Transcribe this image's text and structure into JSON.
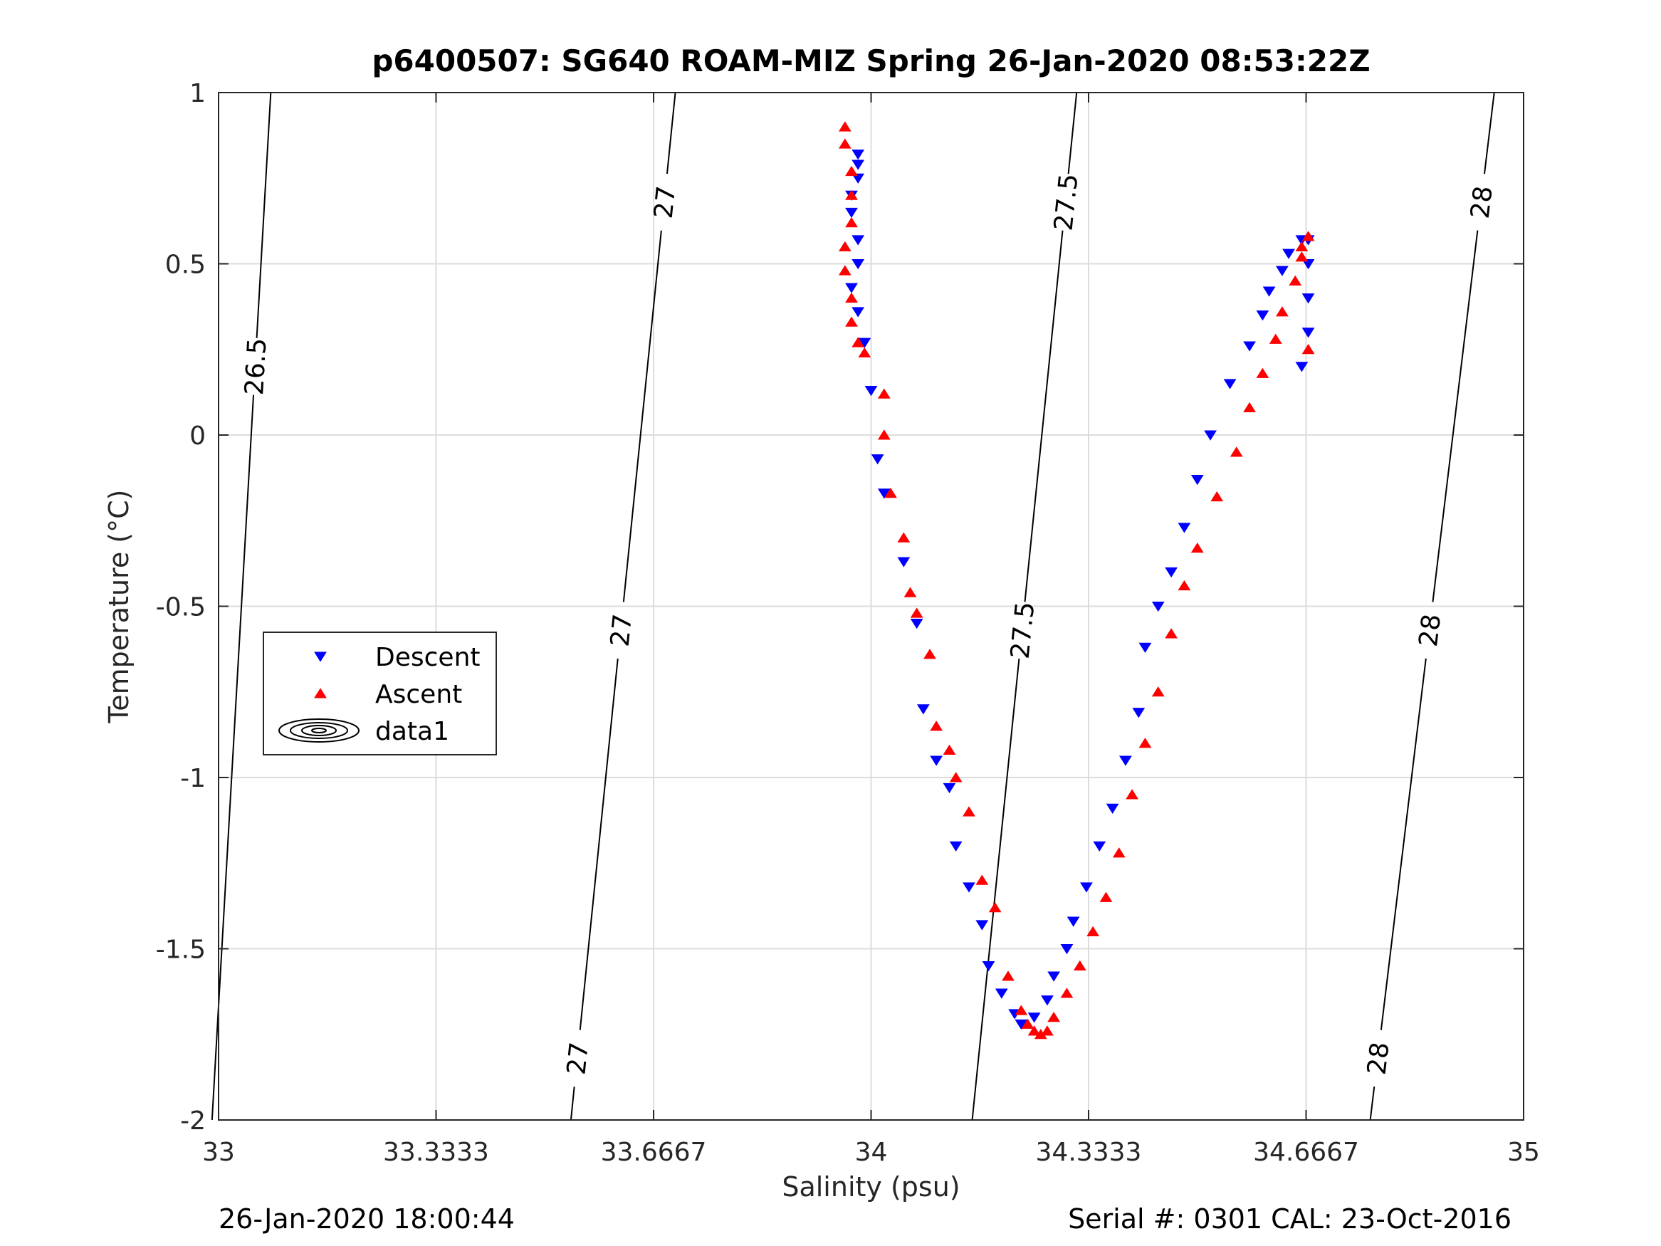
{
  "chart_data": {
    "type": "scatter",
    "title": "p6400507: SG640 ROAM-MIZ Spring 26-Jan-2020 08:53:22Z",
    "xlabel": "Salinity (psu)",
    "ylabel": "Temperature (°C)",
    "xlim": [
      33,
      35
    ],
    "ylim": [
      -2,
      1
    ],
    "xticks": [
      33,
      33.3333,
      33.6667,
      34,
      34.3333,
      34.6667,
      35
    ],
    "xtick_labels": [
      "33",
      "33.3333",
      "33.6667",
      "34",
      "34.3333",
      "34.6667",
      "35"
    ],
    "yticks": [
      -2,
      -1.5,
      -1,
      -0.5,
      0,
      0.5,
      1
    ],
    "ytick_labels": [
      "-2",
      "-1.5",
      "-1",
      "-0.5",
      "0",
      "0.5",
      "1"
    ],
    "grid": true,
    "legend_position": "left-middle",
    "series": [
      {
        "name": "Descent",
        "marker": "down-triangle",
        "color": "#0000ff",
        "x": [
          33.98,
          33.98,
          33.98,
          33.97,
          33.97,
          33.98,
          33.98,
          33.97,
          33.98,
          33.99,
          34.0,
          34.01,
          34.02,
          34.05,
          34.07,
          34.08,
          34.1,
          34.12,
          34.13,
          34.15,
          34.17,
          34.18,
          34.2,
          34.22,
          34.23,
          34.25,
          34.27,
          34.28,
          34.3,
          34.31,
          34.33,
          34.35,
          34.37,
          34.39,
          34.41,
          34.42,
          34.44,
          34.46,
          34.48,
          34.5,
          34.52,
          34.55,
          34.58,
          34.6,
          34.61,
          34.63,
          34.64,
          34.66,
          34.67,
          34.67,
          34.67,
          34.67,
          34.66
        ],
        "y": [
          0.82,
          0.79,
          0.75,
          0.7,
          0.65,
          0.57,
          0.5,
          0.43,
          0.36,
          0.27,
          0.13,
          -0.07,
          -0.17,
          -0.37,
          -0.55,
          -0.8,
          -0.95,
          -1.03,
          -1.2,
          -1.32,
          -1.43,
          -1.55,
          -1.63,
          -1.69,
          -1.72,
          -1.7,
          -1.65,
          -1.58,
          -1.5,
          -1.42,
          -1.32,
          -1.2,
          -1.09,
          -0.95,
          -0.81,
          -0.62,
          -0.5,
          -0.4,
          -0.27,
          -0.13,
          0.0,
          0.15,
          0.26,
          0.35,
          0.42,
          0.48,
          0.53,
          0.57,
          0.57,
          0.5,
          0.4,
          0.3,
          0.2
        ]
      },
      {
        "name": "Ascent",
        "marker": "up-triangle",
        "color": "#ff0000",
        "x": [
          33.96,
          33.96,
          33.97,
          33.97,
          33.97,
          33.96,
          33.96,
          33.97,
          33.97,
          33.98,
          33.99,
          34.02,
          34.02,
          34.03,
          34.05,
          34.06,
          34.07,
          34.09,
          34.1,
          34.12,
          34.13,
          34.15,
          34.17,
          34.19,
          34.21,
          34.23,
          34.24,
          34.25,
          34.26,
          34.27,
          34.28,
          34.3,
          34.32,
          34.34,
          34.36,
          34.38,
          34.4,
          34.42,
          34.44,
          34.46,
          34.48,
          34.5,
          34.53,
          34.56,
          34.58,
          34.6,
          34.62,
          34.63,
          34.65,
          34.66,
          34.67,
          34.66,
          34.67
        ],
        "y": [
          0.9,
          0.85,
          0.77,
          0.7,
          0.62,
          0.55,
          0.48,
          0.4,
          0.33,
          0.27,
          0.24,
          0.12,
          0.0,
          -0.17,
          -0.3,
          -0.46,
          -0.52,
          -0.64,
          -0.85,
          -0.92,
          -1.0,
          -1.1,
          -1.3,
          -1.38,
          -1.58,
          -1.68,
          -1.72,
          -1.74,
          -1.75,
          -1.74,
          -1.7,
          -1.63,
          -1.55,
          -1.45,
          -1.35,
          -1.22,
          -1.05,
          -0.9,
          -0.75,
          -0.58,
          -0.44,
          -0.33,
          -0.18,
          -0.05,
          0.08,
          0.18,
          0.28,
          0.36,
          0.45,
          0.52,
          0.58,
          0.55,
          0.25
        ]
      }
    ],
    "density_contours": [
      {
        "level": "26.5",
        "x": [
          32.99,
          33.08
        ],
        "y": [
          -2.0,
          1.0
        ],
        "labels": [
          {
            "text": "26.5",
            "x": 33.03,
            "y": 0.2
          }
        ]
      },
      {
        "level": "27",
        "x": [
          33.54,
          33.7
        ],
        "y": [
          -2.0,
          1.0
        ],
        "labels": [
          {
            "text": "27",
            "x": 33.55,
            "y": -1.82
          },
          {
            "text": "27",
            "x": 33.59,
            "y": -0.57
          },
          {
            "text": "27",
            "x": 33.68,
            "y": 0.68
          }
        ]
      },
      {
        "level": "27.5",
        "x": [
          34.155,
          34.315
        ],
        "y": [
          -2.0,
          1.0
        ],
        "labels": [
          {
            "text": "27.5",
            "x": 34.22,
            "y": -0.57
          },
          {
            "text": "27.5",
            "x": 34.3,
            "y": 0.68
          }
        ]
      },
      {
        "level": "28",
        "x": [
          34.765,
          34.955
        ],
        "y": [
          -2.0,
          1.0
        ],
        "labels": [
          {
            "text": "28",
            "x": 34.78,
            "y": -1.82
          },
          {
            "text": "28",
            "x": 34.83,
            "y": -0.57
          },
          {
            "text": "28",
            "x": 34.93,
            "y": 0.68
          }
        ]
      }
    ],
    "legend": [
      {
        "label": "Descent",
        "marker": "down-triangle",
        "color": "#0000ff"
      },
      {
        "label": "Ascent",
        "marker": "up-triangle",
        "color": "#ff0000"
      },
      {
        "label": "data1",
        "marker": "contour"
      }
    ]
  },
  "footer": {
    "left": "26-Jan-2020 18:00:44",
    "right": "Serial #: 0301  CAL: 23-Oct-2016"
  }
}
